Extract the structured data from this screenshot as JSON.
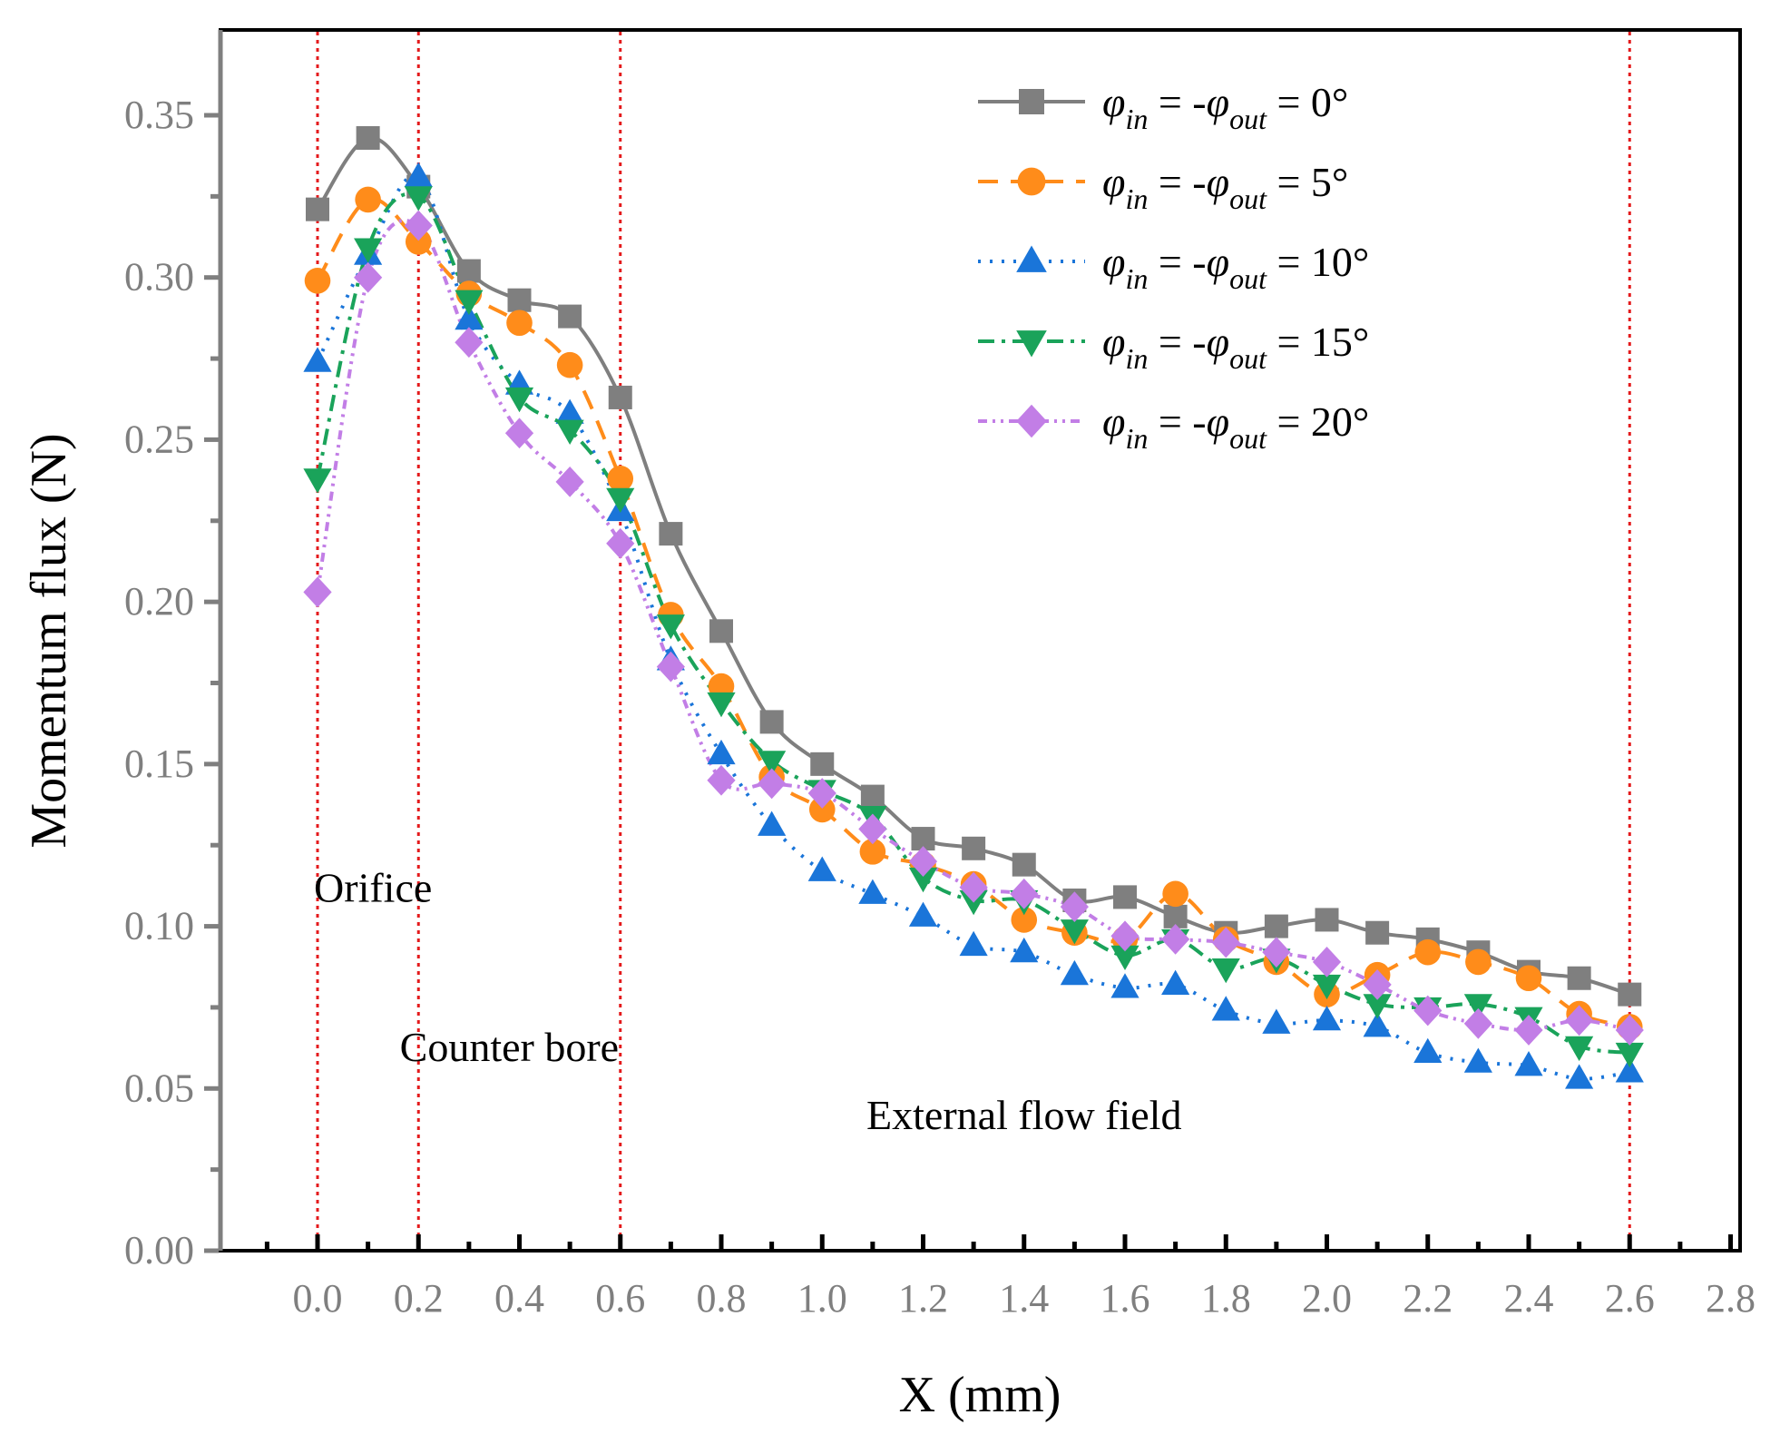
{
  "chart_data": {
    "type": "line",
    "xlabel": "X (mm)",
    "ylabel": "Momentum flux (N)",
    "xlim": [
      -0.15,
      2.8
    ],
    "ylim": [
      0,
      0.37
    ],
    "x_ticks": [
      "0.0",
      "0.2",
      "0.4",
      "0.6",
      "0.8",
      "1.0",
      "1.2",
      "1.4",
      "1.6",
      "1.8",
      "2.0",
      "2.2",
      "2.4",
      "2.6",
      "2.8"
    ],
    "x_tick_values": [
      0.0,
      0.2,
      0.4,
      0.6,
      0.8,
      1.0,
      1.2,
      1.4,
      1.6,
      1.8,
      2.0,
      2.2,
      2.4,
      2.6,
      2.8
    ],
    "y_ticks": [
      "0.00",
      "0.05",
      "0.10",
      "0.15",
      "0.20",
      "0.25",
      "0.30",
      "0.35"
    ],
    "y_tick_values": [
      0.0,
      0.05,
      0.1,
      0.15,
      0.2,
      0.25,
      0.3,
      0.35
    ],
    "vertical_lines": [
      0.0,
      0.2,
      0.6,
      2.6
    ],
    "vertical_line_color": "#e41a1c",
    "regions": [
      {
        "label": "Orifice",
        "x": 0.11,
        "y": 0.112
      },
      {
        "label": "Counter bore",
        "x": 0.38,
        "y": 0.063
      },
      {
        "label": "External flow field",
        "x": 1.4,
        "y": 0.042
      }
    ],
    "legend_position": "top-right",
    "x": [
      0.0,
      0.1,
      0.2,
      0.3,
      0.4,
      0.5,
      0.6,
      0.7,
      0.8,
      0.9,
      1.0,
      1.1,
      1.2,
      1.3,
      1.4,
      1.5,
      1.6,
      1.7,
      1.8,
      1.9,
      2.0,
      2.1,
      2.2,
      2.3,
      2.4,
      2.5,
      2.6
    ],
    "series": [
      {
        "name": "0°",
        "color": "#7f7f7f",
        "marker": "square",
        "dash": "",
        "legend": {
          "phi": "φ",
          "in": "in",
          "eq": " = -",
          "out": "out",
          "value": " = 0°"
        },
        "values": [
          0.321,
          0.343,
          0.328,
          0.302,
          0.293,
          0.288,
          0.263,
          0.221,
          0.191,
          0.163,
          0.15,
          0.14,
          0.127,
          0.124,
          0.119,
          0.108,
          0.109,
          0.103,
          0.098,
          0.1,
          0.102,
          0.098,
          0.096,
          0.092,
          0.086,
          0.084,
          0.079
        ]
      },
      {
        "name": "5°",
        "color": "#ff8c1a",
        "marker": "circle",
        "dash": "22,14",
        "legend": {
          "phi": "φ",
          "in": "in",
          "eq": " = -",
          "out": "out",
          "value": " = 5°"
        },
        "values": [
          0.299,
          0.324,
          0.311,
          0.295,
          0.286,
          0.273,
          0.238,
          0.196,
          0.174,
          0.146,
          0.136,
          0.123,
          0.119,
          0.113,
          0.102,
          0.098,
          0.096,
          0.11,
          0.096,
          0.089,
          0.079,
          0.085,
          0.092,
          0.089,
          0.084,
          0.073,
          0.069
        ]
      },
      {
        "name": "10°",
        "color": "#1a75d9",
        "marker": "triangle-up",
        "dash": "3,10",
        "legend": {
          "phi": "φ",
          "in": "in",
          "eq": " = -",
          "out": "out",
          "value": " = 10°"
        },
        "values": [
          0.274,
          0.307,
          0.331,
          0.287,
          0.267,
          0.258,
          0.228,
          0.182,
          0.153,
          0.131,
          0.117,
          0.11,
          0.103,
          0.094,
          0.092,
          0.085,
          0.081,
          0.082,
          0.074,
          0.07,
          0.071,
          0.069,
          0.061,
          0.058,
          0.057,
          0.053,
          0.055
        ]
      },
      {
        "name": "15°",
        "color": "#1aa35a",
        "marker": "triangle-down",
        "dash": "18,8,4,8",
        "legend": {
          "phi": "φ",
          "in": "in",
          "eq": " = -",
          "out": "out",
          "value": " = 15°"
        },
        "values": [
          0.238,
          0.309,
          0.325,
          0.293,
          0.263,
          0.253,
          0.232,
          0.193,
          0.169,
          0.151,
          0.142,
          0.134,
          0.115,
          0.108,
          0.108,
          0.099,
          0.091,
          0.096,
          0.087,
          0.09,
          0.082,
          0.076,
          0.075,
          0.076,
          0.072,
          0.063,
          0.061
        ]
      },
      {
        "name": "20°",
        "color": "#c27ee6",
        "marker": "diamond",
        "dash": "10,6,3,6,3,6",
        "legend": {
          "phi": "φ",
          "in": "in",
          "eq": " = -",
          "out": "out",
          "value": " = 20°"
        },
        "values": [
          0.203,
          0.3,
          0.316,
          0.28,
          0.252,
          0.237,
          0.218,
          0.18,
          0.145,
          0.144,
          0.141,
          0.13,
          0.12,
          0.112,
          0.11,
          0.106,
          0.097,
          0.096,
          0.095,
          0.092,
          0.089,
          0.082,
          0.074,
          0.07,
          0.068,
          0.071,
          0.068
        ]
      }
    ]
  }
}
